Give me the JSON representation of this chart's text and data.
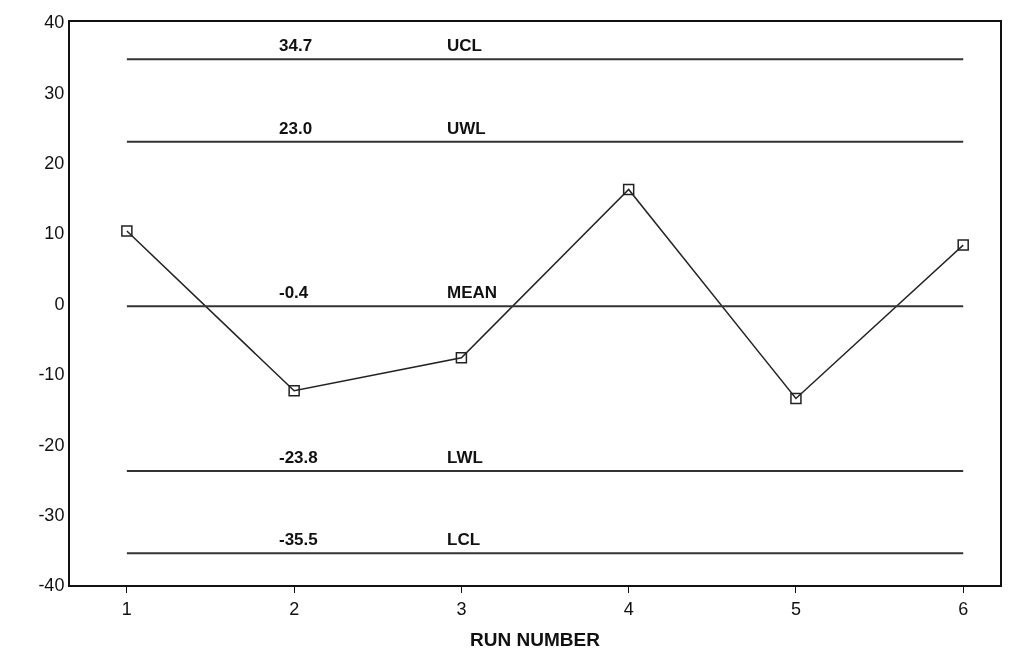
{
  "chart_data": {
    "type": "line",
    "xlabel": "RUN NUMBER",
    "x": [
      1,
      2,
      3,
      4,
      5,
      6
    ],
    "series": [
      {
        "color": "#222222",
        "values": [
          10.3,
          -12.4,
          -7.7,
          16.2,
          -13.5,
          8.3
        ]
      }
    ],
    "xlim": [
      0.66,
      6.22
    ],
    "xticks": [
      1,
      2,
      3,
      4,
      5,
      6
    ],
    "ylim": [
      -40,
      40
    ],
    "yticks": [
      -40,
      -30,
      -20,
      -10,
      0,
      10,
      20,
      30,
      40
    ],
    "ref_lines": [
      {
        "axis": "y",
        "value": 34.7,
        "label": "UCL",
        "color": "#333333"
      },
      {
        "axis": "y",
        "value": 23.0,
        "label": "UWL",
        "color": "#333333"
      },
      {
        "axis": "y",
        "value": -0.4,
        "label": "MEAN",
        "color": "#333333"
      },
      {
        "axis": "y",
        "value": -23.8,
        "label": "LWL",
        "color": "#333333"
      },
      {
        "axis": "y",
        "value": -35.5,
        "label": "LCL",
        "color": "#333333"
      }
    ],
    "annotations": [
      {
        "text": "34.7",
        "y": 34.7
      },
      {
        "text": "23.0",
        "y": 23.0
      },
      {
        "text": "-0.4",
        "y": -0.4
      },
      {
        "text": "-23.8",
        "y": -23.8
      },
      {
        "text": "-35.5",
        "y": -35.5
      }
    ],
    "marker": "square",
    "line_style": "solid"
  }
}
